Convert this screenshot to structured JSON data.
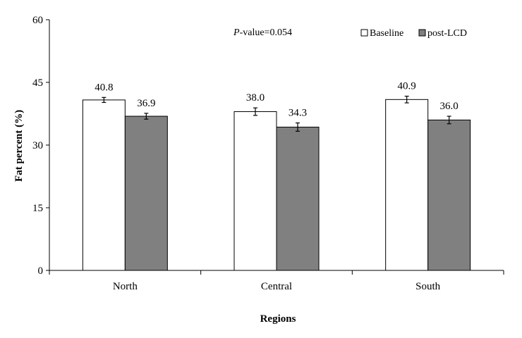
{
  "chart_data": {
    "type": "bar",
    "categories": [
      "North",
      "Central",
      "South"
    ],
    "series": [
      {
        "name": "Baseline",
        "values": [
          40.8,
          38.0,
          40.9
        ],
        "errors": [
          0.6,
          0.9,
          0.8
        ],
        "color": "#ffffff"
      },
      {
        "name": "post-LCD",
        "values": [
          36.9,
          34.3,
          36.0
        ],
        "errors": [
          0.7,
          1.0,
          0.9
        ],
        "color": "#808080"
      }
    ],
    "data_labels": [
      [
        "40.8",
        "38.0",
        "40.9"
      ],
      [
        "36.9",
        "34.3",
        "36.0"
      ]
    ],
    "title": "",
    "annotation": {
      "italic_part": "P",
      "rest": "-value=0.054"
    },
    "xlabel": "Regions",
    "ylabel": "Fat percent (%)",
    "ylim": [
      0,
      60
    ],
    "yticks": [
      0,
      15,
      30,
      45,
      60
    ],
    "ytick_labels": [
      "0",
      "15",
      "30",
      "45",
      "60"
    ],
    "grid": false,
    "legend_position": "top-right"
  }
}
